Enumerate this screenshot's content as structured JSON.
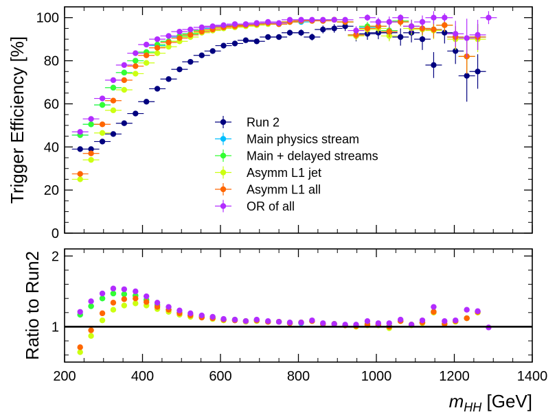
{
  "chart_data": [
    {
      "panel": "top",
      "type": "scatter",
      "ylabel": "Trigger Efficiency [%]",
      "xlim": [
        200,
        1400
      ],
      "ylim": [
        0,
        105
      ],
      "xticks": [
        200,
        400,
        600,
        800,
        1000,
        1200,
        1400
      ],
      "yticks": [
        0,
        20,
        40,
        60,
        80,
        100
      ],
      "x": [
        240,
        268,
        297,
        325,
        353,
        382,
        410,
        438,
        467,
        495,
        523,
        552,
        580,
        608,
        637,
        665,
        693,
        722,
        750,
        778,
        807,
        835,
        863,
        892,
        920,
        948,
        977,
        1005,
        1033,
        1062,
        1090,
        1118,
        1147,
        1175,
        1203,
        1232,
        1260,
        1288
      ],
      "legend_placement": "center",
      "series": [
        {
          "name": "Run 2",
          "color": "#00007f",
          "values": [
            39,
            39,
            42.5,
            46,
            51,
            55.5,
            61,
            67,
            71.5,
            76,
            79.5,
            82.5,
            84.5,
            87,
            88,
            89.5,
            89,
            91,
            91,
            93,
            93,
            91,
            94.5,
            95,
            96,
            91.5,
            92.5,
            93,
            93,
            91,
            93,
            90,
            78,
            93,
            84.5,
            73,
            75,
            null
          ],
          "err": [
            0.5,
            0.5,
            0.5,
            0.5,
            0.5,
            0.5,
            0.6,
            0.6,
            0.6,
            0.6,
            0.7,
            0.7,
            0.8,
            0.8,
            0.9,
            1,
            1,
            1.2,
            1.2,
            1.4,
            1.5,
            1.6,
            1.8,
            2,
            2.2,
            2.5,
            2.8,
            3,
            3.5,
            4,
            4.5,
            5,
            6,
            5,
            6,
            12,
            8,
            0
          ]
        },
        {
          "name": "Main physics stream",
          "color": "#00bfff",
          "values": [
            45.5,
            50.5,
            59.5,
            67.5,
            74.5,
            80,
            84,
            87,
            89,
            91,
            92.5,
            94,
            95,
            96,
            96,
            96.5,
            97,
            97.5,
            97,
            98,
            98,
            98.5,
            98.5,
            99,
            98,
            92,
            95.5,
            96,
            94,
            98,
            96,
            95,
            94.5,
            96.5,
            91,
            82,
            91,
            null
          ],
          "err": [
            0.5,
            0.5,
            0.5,
            0.5,
            0.5,
            0.5,
            0.5,
            0.5,
            0.5,
            0.5,
            0.5,
            0.5,
            0.5,
            0.5,
            0.5,
            0.6,
            0.6,
            0.7,
            0.7,
            0.8,
            0.8,
            0.9,
            1,
            1,
            1.2,
            2,
            2,
            2,
            2.5,
            2,
            3,
            3,
            4,
            3,
            5,
            8,
            6,
            0
          ]
        },
        {
          "name": "Main + delayed streams",
          "color": "#33ff33",
          "values": [
            45.5,
            50.5,
            59.5,
            67.5,
            74.5,
            80,
            84,
            87.5,
            89,
            91.5,
            92.5,
            94,
            95.5,
            96,
            96.5,
            96.5,
            97,
            97.5,
            97,
            98,
            98.5,
            98.5,
            98.5,
            99,
            98,
            92,
            96,
            96,
            94,
            98.5,
            96,
            95,
            94.5,
            96.5,
            91,
            82,
            91,
            null
          ],
          "err": [
            0.5,
            0.5,
            0.5,
            0.5,
            0.5,
            0.5,
            0.5,
            0.5,
            0.5,
            0.5,
            0.5,
            0.5,
            0.5,
            0.5,
            0.5,
            0.6,
            0.6,
            0.7,
            0.7,
            0.8,
            0.8,
            0.9,
            1,
            1,
            1.2,
            2,
            2,
            2,
            2.5,
            2,
            3,
            3,
            4,
            3,
            5,
            8,
            6,
            0
          ]
        },
        {
          "name": "Asymm L1 jet",
          "color": "#ccff11",
          "values": [
            25,
            34,
            46.5,
            57,
            66.5,
            74,
            79,
            83.5,
            86.5,
            89,
            91,
            93,
            94,
            95,
            95.5,
            96,
            96.5,
            97,
            97,
            98,
            98.5,
            98.5,
            98.5,
            99,
            98,
            91.5,
            94.5,
            95,
            91.5,
            98,
            95,
            94.5,
            94,
            96.5,
            90,
            82,
            90,
            null
          ],
          "err": [
            0.5,
            0.5,
            0.5,
            0.5,
            0.5,
            0.5,
            0.5,
            0.5,
            0.5,
            0.5,
            0.5,
            0.5,
            0.5,
            0.5,
            0.5,
            0.6,
            0.6,
            0.7,
            0.7,
            0.8,
            0.8,
            0.9,
            1,
            1,
            1.2,
            2,
            2,
            2,
            2.5,
            2,
            3,
            3,
            4,
            3,
            5,
            8,
            6,
            0
          ]
        },
        {
          "name": "Asymm L1 all",
          "color": "#ff6600",
          "values": [
            27.5,
            37,
            50.5,
            61.5,
            71,
            77.5,
            82.5,
            86,
            88.5,
            90.5,
            92,
            93.5,
            94.5,
            95.5,
            96,
            96.5,
            97,
            97.5,
            97,
            98,
            98.5,
            98.5,
            98.5,
            99,
            98,
            92,
            95,
            96,
            93.5,
            98,
            96,
            95,
            94.5,
            96.5,
            91,
            82,
            91,
            null
          ],
          "err": [
            0.5,
            0.5,
            0.5,
            0.5,
            0.5,
            0.5,
            0.5,
            0.5,
            0.5,
            0.5,
            0.5,
            0.5,
            0.5,
            0.5,
            0.5,
            0.6,
            0.6,
            0.7,
            0.7,
            0.8,
            0.8,
            0.9,
            1,
            1,
            1.2,
            2,
            2,
            2,
            2.5,
            2,
            3,
            3,
            4,
            3,
            5,
            8,
            6,
            0
          ]
        },
        {
          "name": "OR of all",
          "color": "#b22cff",
          "values": [
            47,
            53,
            62.5,
            71,
            78,
            83.5,
            87.5,
            90,
            91.5,
            93.5,
            94.5,
            95.5,
            96,
            96.5,
            97,
            97,
            97.5,
            98,
            97.5,
            99,
            99,
            99,
            99,
            99,
            99,
            94,
            100,
            98,
            98,
            100,
            96,
            98,
            100,
            100,
            92.5,
            90.5,
            92,
            100
          ],
          "err": [
            0.5,
            0.5,
            0.5,
            0.5,
            0.5,
            0.5,
            0.5,
            0.5,
            0.5,
            0.5,
            0.5,
            0.5,
            0.5,
            0.5,
            0.5,
            0.6,
            0.6,
            0.7,
            0.7,
            0.8,
            0.8,
            0.9,
            1,
            1,
            1.2,
            2,
            1.5,
            2,
            2.5,
            1.5,
            3,
            3,
            3,
            2,
            6,
            9,
            7,
            3
          ]
        }
      ]
    },
    {
      "panel": "bottom",
      "type": "scatter",
      "xlabel_main": "m",
      "xlabel_sub": "HH",
      "xlabel_unit": " [GeV]",
      "ylabel": "Ratio to Run2",
      "xlim": [
        200,
        1400
      ],
      "ylim": [
        0.5,
        2.1
      ],
      "xticks": [
        200,
        400,
        600,
        800,
        1000,
        1200,
        1400
      ],
      "yticks": [
        1,
        2
      ],
      "reference_line": 1,
      "x": [
        240,
        268,
        297,
        325,
        353,
        382,
        410,
        438,
        467,
        495,
        523,
        552,
        580,
        608,
        637,
        665,
        693,
        722,
        750,
        778,
        807,
        835,
        863,
        892,
        920,
        948,
        977,
        1005,
        1033,
        1062,
        1090,
        1118,
        1147,
        1175,
        1203,
        1232,
        1260,
        1288
      ],
      "series": [
        {
          "name": "Main physics stream",
          "color": "#00bfff",
          "values": [
            1.17,
            1.29,
            1.4,
            1.47,
            1.46,
            1.44,
            1.38,
            1.3,
            1.24,
            1.2,
            1.16,
            1.14,
            1.12,
            1.1,
            1.09,
            1.08,
            1.09,
            1.07,
            1.07,
            1.05,
            1.05,
            1.08,
            1.04,
            1.04,
            1.02,
            1.01,
            1.03,
            1.03,
            1.01,
            1.08,
            1.03,
            1.06,
            1.21,
            1.04,
            1.08,
            1.12,
            1.21,
            null
          ]
        },
        {
          "name": "Main + delayed streams",
          "color": "#33ff33",
          "values": [
            1.17,
            1.29,
            1.4,
            1.47,
            1.46,
            1.44,
            1.38,
            1.31,
            1.24,
            1.2,
            1.16,
            1.14,
            1.13,
            1.1,
            1.1,
            1.08,
            1.09,
            1.07,
            1.07,
            1.05,
            1.06,
            1.08,
            1.04,
            1.04,
            1.02,
            1.01,
            1.04,
            1.03,
            1.01,
            1.08,
            1.03,
            1.06,
            1.21,
            1.04,
            1.08,
            1.12,
            1.21,
            null
          ]
        },
        {
          "name": "Asymm L1 jet",
          "color": "#ccff11",
          "values": [
            0.64,
            0.87,
            1.09,
            1.24,
            1.3,
            1.33,
            1.3,
            1.25,
            1.21,
            1.17,
            1.14,
            1.13,
            1.11,
            1.09,
            1.09,
            1.07,
            1.08,
            1.07,
            1.07,
            1.05,
            1.06,
            1.08,
            1.04,
            1.04,
            1.02,
            1.0,
            1.02,
            1.02,
            0.98,
            1.08,
            1.02,
            1.05,
            1.2,
            1.04,
            1.07,
            1.12,
            1.2,
            null
          ]
        },
        {
          "name": "Asymm L1 all",
          "color": "#ff6600",
          "values": [
            0.71,
            0.95,
            1.19,
            1.34,
            1.39,
            1.4,
            1.35,
            1.28,
            1.24,
            1.19,
            1.16,
            1.13,
            1.12,
            1.1,
            1.09,
            1.08,
            1.09,
            1.07,
            1.07,
            1.05,
            1.06,
            1.08,
            1.04,
            1.04,
            1.02,
            1.01,
            1.03,
            1.03,
            1.0,
            1.08,
            1.03,
            1.06,
            1.21,
            1.04,
            1.08,
            1.12,
            1.21,
            null
          ]
        },
        {
          "name": "OR of all",
          "color": "#b22cff",
          "values": [
            1.21,
            1.36,
            1.47,
            1.54,
            1.53,
            1.5,
            1.43,
            1.34,
            1.28,
            1.23,
            1.19,
            1.16,
            1.14,
            1.11,
            1.1,
            1.08,
            1.1,
            1.08,
            1.07,
            1.06,
            1.06,
            1.09,
            1.05,
            1.04,
            1.03,
            1.03,
            1.08,
            1.05,
            1.05,
            1.1,
            1.03,
            1.09,
            1.28,
            1.08,
            1.09,
            1.24,
            1.22,
            0.99
          ]
        }
      ]
    }
  ]
}
